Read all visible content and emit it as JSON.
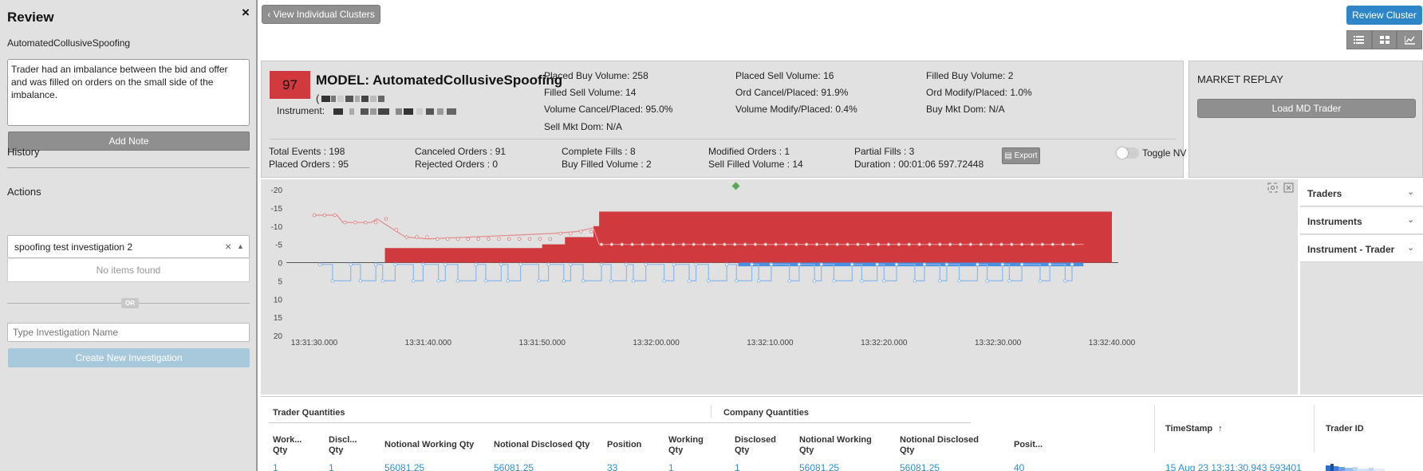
{
  "review": {
    "title": "Review",
    "close_glyph": "×",
    "model_name": "AutomatedCollusiveSpoofing",
    "note_text": "Trader had an imbalance between the bid and offer and was filled on orders on the small side of the imbalance.",
    "add_note_label": "Add Note",
    "history_label": "History",
    "actions_label": "Actions",
    "investigation_value": "spoofing test investigation 2",
    "clear_glyph": "×",
    "no_items_label": "No items found",
    "or_label": "OR",
    "investigation_name_placeholder": "Type Investigation Name",
    "create_label": "Create New Investigation"
  },
  "topbar": {
    "view_clusters_label": "View Individual Clusters",
    "review_cluster_label": "Review Cluster"
  },
  "info": {
    "score": "97",
    "model_title": "MODEL: AutomatedCollusiveSpoofing",
    "paren": "(",
    "instrument_label": "Instrument:",
    "stats": [
      [
        "Placed Buy Volume: 258",
        "Placed Sell Volume: 16",
        "Filled Buy Volume: 2"
      ],
      [
        "Filled Sell Volume: 14",
        "Ord Cancel/Placed: 91.9%",
        "Ord Modify/Placed: 1.0%"
      ],
      [
        "Volume Cancel/Placed: 95.0%",
        "Volume Modify/Placed: 0.4%",
        "Buy Mkt Dom: N/A"
      ],
      [
        "Sell Mkt Dom: N/A"
      ]
    ],
    "counts": [
      [
        "Total Events : 198",
        "Placed Orders : 95"
      ],
      [
        "Canceled Orders : 91",
        "Rejected Orders : 0"
      ],
      [
        "Complete Fills : 8",
        "Buy Filled Volume : 2"
      ],
      [
        "Modified Orders : 1",
        "Sell Filled Volume : 14"
      ],
      [
        "Partial Fills : 3",
        "Duration : 00:01:06 597.72448"
      ]
    ],
    "export_label": "Export",
    "toggle_label": "Toggle NV"
  },
  "market_replay": {
    "title": "MARKET REPLAY",
    "load_label": "Load MD Trader"
  },
  "filters": [
    "Traders",
    "Instruments",
    "Instrument - Trader"
  ],
  "chart_data": {
    "type": "area",
    "title": "",
    "xlabel": "",
    "ylabel": "",
    "y_ticks": [
      "-20",
      "-15",
      "-10",
      "-5",
      "0",
      "5",
      "10",
      "15",
      "20"
    ],
    "x_ticks": [
      "13:31:30.000",
      "13:31:40.000",
      "13:31:50.000",
      "13:32:00.000",
      "13:32:10.000",
      "13:32:20.000",
      "13:32:30.000",
      "13:32:40.000"
    ],
    "ylim": [
      20,
      -20
    ],
    "colors": {
      "sell": "#d0393d",
      "buy": "#4a8fe0",
      "sell_line": "#e58a8c",
      "buy_line": "#8ab8ee",
      "marker": "#5aa85a"
    },
    "series": [
      {
        "name": "",
        "color": "#d0393d",
        "points": [
          [
            "13:31:36.000",
            0
          ],
          [
            "13:31:36.200",
            -4
          ],
          [
            "13:31:46.000",
            -4
          ],
          [
            "13:31:50.000",
            -5
          ],
          [
            "13:31:52.000",
            -7
          ],
          [
            "13:31:54.500",
            -10
          ],
          [
            "13:31:55.000",
            -14
          ],
          [
            "13:32:40.000",
            -14
          ]
        ]
      },
      {
        "name": "",
        "color": "#4a8fe0",
        "points": [
          [
            "13:31:30.000",
            0
          ],
          [
            "13:32:07.000",
            0
          ],
          [
            "13:32:07.200",
            1
          ],
          [
            "13:32:37.500",
            1
          ]
        ]
      }
    ],
    "marker": {
      "x": "13:32:07.000",
      "y": -21
    }
  },
  "table": {
    "group_trader": "Trader Quantities",
    "group_company": "Company Quantities",
    "timestamp_header": "TimeStamp",
    "sort_glyph": "↑",
    "trader_id_header": "Trader ID",
    "headers": [
      [
        "Work...",
        "Qty"
      ],
      [
        "Discl...",
        "Qty"
      ],
      [
        "Notional Working Qty",
        ""
      ],
      [
        "Notional Disclosed Qty",
        ""
      ],
      [
        "Position",
        ""
      ],
      [
        "Working",
        "Qty"
      ],
      [
        "Disclosed",
        "Qty"
      ],
      [
        "Notional Working",
        "Qty"
      ],
      [
        "Notional Disclosed",
        "Qty"
      ],
      [
        "Posit...",
        ""
      ]
    ],
    "row": [
      "1",
      "1",
      "56081.25",
      "56081.25",
      "33",
      "1",
      "1",
      "56081.25",
      "56081.25",
      "40",
      "15 Aug 23 13:31:30.943 593401"
    ]
  }
}
